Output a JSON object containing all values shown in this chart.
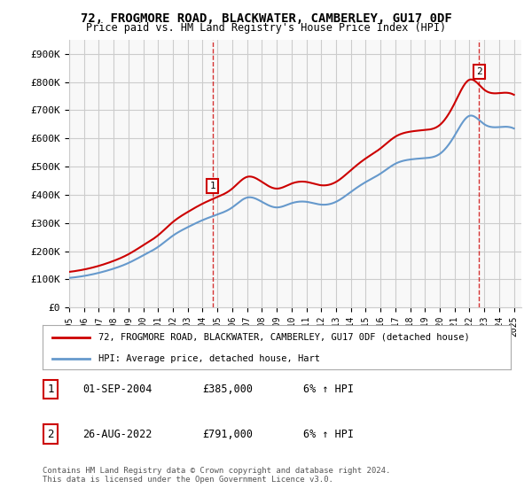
{
  "title": "72, FROGMORE ROAD, BLACKWATER, CAMBERLEY, GU17 0DF",
  "subtitle": "Price paid vs. HM Land Registry's House Price Index (HPI)",
  "legend_line1": "72, FROGMORE ROAD, BLACKWATER, CAMBERLEY, GU17 0DF (detached house)",
  "legend_line2": "HPI: Average price, detached house, Hart",
  "annotation1_label": "1",
  "annotation1_date": "01-SEP-2004",
  "annotation1_price": "£385,000",
  "annotation1_hpi": "6% ↑ HPI",
  "annotation1_year": 2004.67,
  "annotation1_value": 385000,
  "annotation2_label": "2",
  "annotation2_date": "26-AUG-2022",
  "annotation2_price": "£791,000",
  "annotation2_hpi": "6% ↑ HPI",
  "annotation2_year": 2022.65,
  "annotation2_value": 791000,
  "footer": "Contains HM Land Registry data © Crown copyright and database right 2024.\nThis data is licensed under the Open Government Licence v3.0.",
  "ylim_min": 0,
  "ylim_max": 950000,
  "yticks": [
    0,
    100000,
    200000,
    300000,
    400000,
    500000,
    600000,
    700000,
    800000,
    900000
  ],
  "ytick_labels": [
    "£0",
    "£100K",
    "£200K",
    "£300K",
    "£400K",
    "£500K",
    "£600K",
    "£700K",
    "£800K",
    "£900K"
  ],
  "hpi_years": [
    1995,
    1996,
    1997,
    1998,
    1999,
    2000,
    2001,
    2002,
    2003,
    2004,
    2005,
    2006,
    2007,
    2008,
    2009,
    2010,
    2011,
    2012,
    2013,
    2014,
    2015,
    2016,
    2017,
    2018,
    2019,
    2020,
    2021,
    2022,
    2023,
    2024,
    2025
  ],
  "hpi_values": [
    105000,
    112000,
    123000,
    138000,
    158000,
    185000,
    215000,
    255000,
    285000,
    310000,
    330000,
    355000,
    390000,
    375000,
    355000,
    370000,
    375000,
    365000,
    375000,
    410000,
    445000,
    475000,
    510000,
    525000,
    530000,
    545000,
    610000,
    680000,
    650000,
    640000,
    635000
  ],
  "price_years": [
    1995.5,
    2004.67,
    2022.65
  ],
  "price_values": [
    130000,
    385000,
    791000
  ],
  "line_color_red": "#cc0000",
  "line_color_blue": "#6699cc",
  "annotation_box_color": "#cc0000",
  "background_color": "#ffffff",
  "plot_bg_color": "#f8f8f8",
  "grid_color": "#cccccc",
  "xtick_years": [
    1995,
    1996,
    1997,
    1998,
    1999,
    2000,
    2001,
    2002,
    2003,
    2004,
    2005,
    2006,
    2007,
    2008,
    2009,
    2010,
    2011,
    2012,
    2013,
    2014,
    2015,
    2016,
    2017,
    2018,
    2019,
    2020,
    2021,
    2022,
    2023,
    2024,
    2025
  ]
}
